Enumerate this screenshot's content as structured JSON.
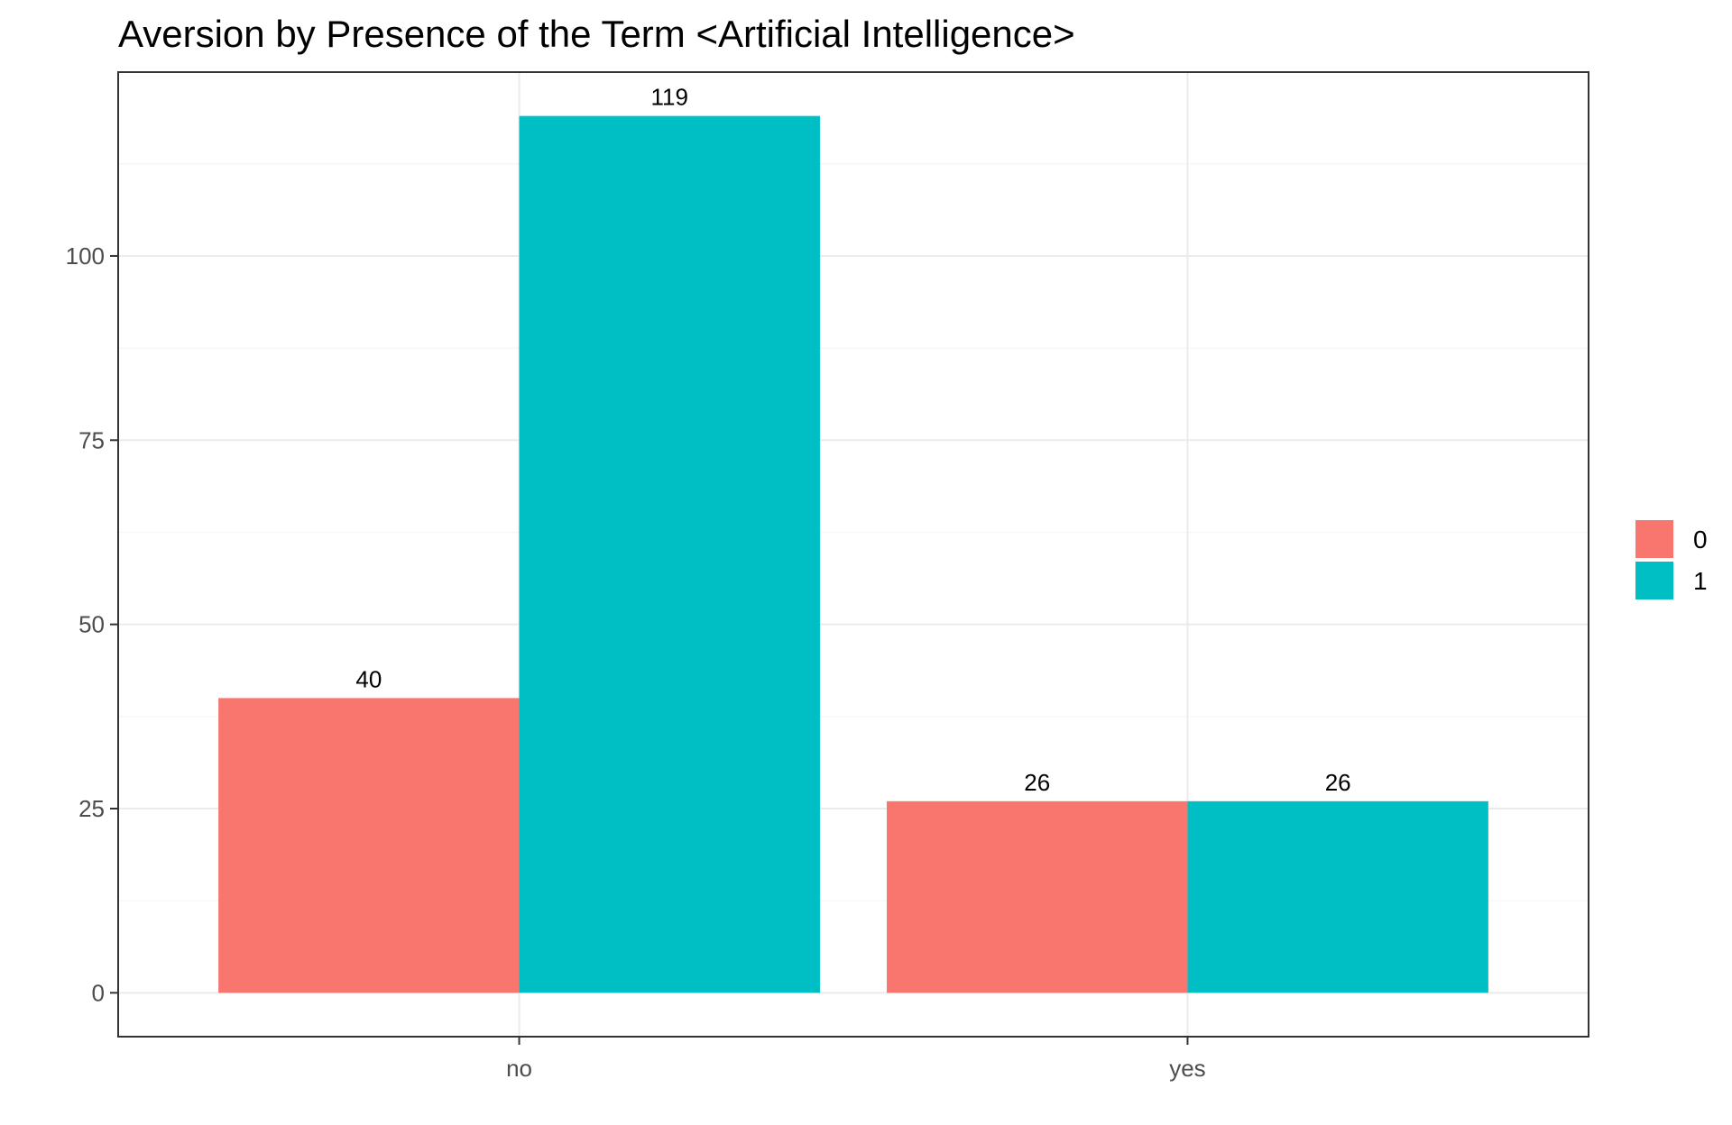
{
  "chart_data": {
    "type": "bar",
    "title": "Aversion by Presence of the Term <Artificial Intelligence>",
    "xlabel": "",
    "ylabel": "",
    "categories": [
      "no",
      "yes"
    ],
    "series": [
      {
        "name": "0",
        "values": [
          40,
          26
        ],
        "color": "#F8766D"
      },
      {
        "name": "1",
        "values": [
          119,
          26
        ],
        "color": "#00BFC4"
      }
    ],
    "data_labels": [
      [
        "40",
        "26"
      ],
      [
        "119",
        "26"
      ]
    ],
    "ylim": [
      -5.95,
      124.95
    ],
    "yticks": [
      0,
      25,
      50,
      75,
      100
    ],
    "ytick_labels": [
      "0",
      "25",
      "50",
      "75",
      "100"
    ],
    "y_minor_ticks": [
      12.5,
      37.5,
      62.5,
      87.5,
      112.5
    ],
    "grid": true,
    "legend": {
      "position": "right",
      "entries": [
        "0",
        "1"
      ]
    },
    "colors": {
      "panel_border": "#333333",
      "grid_major": "#ebebeb",
      "grid_minor": "#f5f5f5",
      "tick": "#333333",
      "tick_label": "#4d4d4d"
    }
  }
}
